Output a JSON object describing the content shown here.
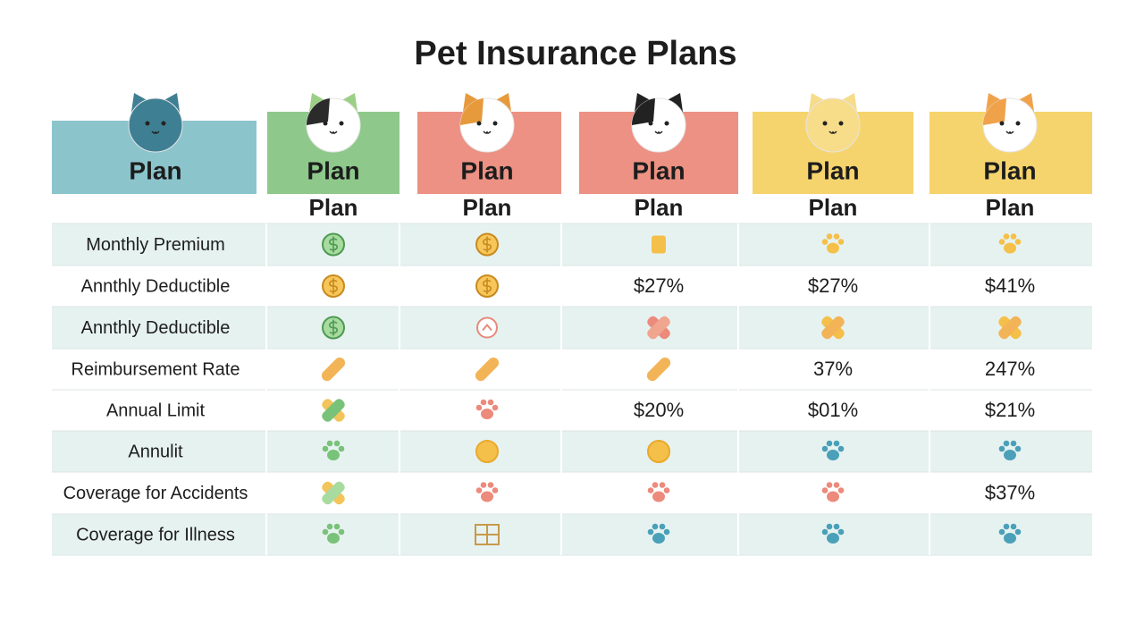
{
  "header": {
    "title": "Pet Insurance Plans"
  },
  "table": {
    "plans": [
      "Plan",
      "Plan",
      "Plan",
      "Plan",
      "Plan",
      "Plan"
    ],
    "subplans": [
      "Plan",
      "Plan",
      "Plan",
      "Plan",
      "Plan"
    ],
    "rows": [
      {
        "label": "Monthly Premium",
        "cells": [
          null,
          null,
          null,
          null,
          null
        ]
      },
      {
        "label": "Annthly Deductible",
        "cells": [
          null,
          null,
          "$27%",
          "$27%",
          "$41%"
        ]
      },
      {
        "label": "Annthly Deductible",
        "cells": [
          null,
          null,
          null,
          null,
          null
        ]
      },
      {
        "label": "Reimbursement Rate",
        "cells": [
          null,
          null,
          null,
          "37%",
          "247%"
        ]
      },
      {
        "label": "Annual Limit",
        "cells": [
          null,
          null,
          "$20%",
          "$01%",
          "$21%"
        ]
      },
      {
        "label": "Annulit",
        "cells": [
          null,
          null,
          null,
          null,
          null
        ]
      },
      {
        "label": "Coverage for Accidents",
        "cells": [
          null,
          null,
          null,
          null,
          "$37%"
        ]
      },
      {
        "label": "Coverage for Illness",
        "cells": [
          null,
          null,
          null,
          null,
          null
        ]
      }
    ]
  }
}
